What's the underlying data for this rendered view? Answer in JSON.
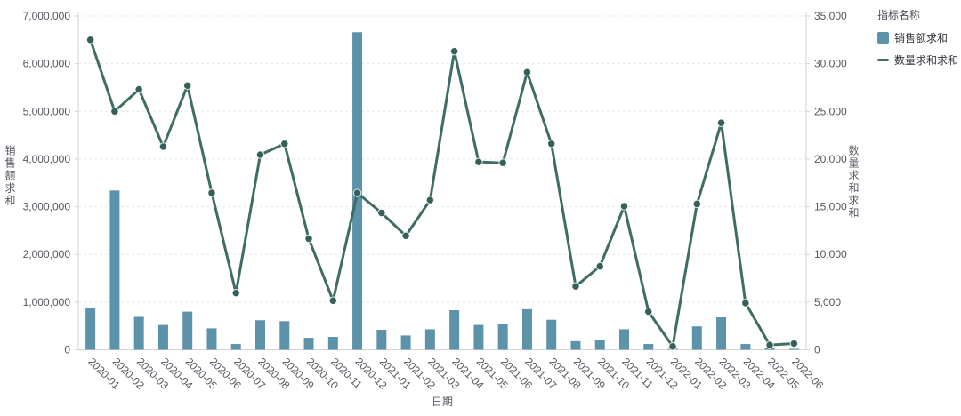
{
  "legend": {
    "title": "指标名称",
    "items": [
      {
        "label": "销售额求和",
        "type": "bar",
        "color": "#5d92ab"
      },
      {
        "label": "数量求和求和",
        "type": "line",
        "color": "#3f6d66"
      }
    ]
  },
  "chart_data": {
    "type": "bar+line",
    "title": "",
    "legend_title": "指标名称",
    "legend_position": "top-right",
    "grid": "horizontal dashed gridlines",
    "categories": [
      "2020-01",
      "2020-02",
      "2020-03",
      "2020-04",
      "2020-05",
      "2020-06",
      "2020-07",
      "2020-08",
      "2020-09",
      "2020-10",
      "2020-11",
      "2020-12",
      "2021-01",
      "2021-02",
      "2021-03",
      "2021-04",
      "2021-05",
      "2021-06",
      "2021-07",
      "2021-08",
      "2021-09",
      "2021-10",
      "2021-11",
      "2021-12",
      "2022-01",
      "2022-02",
      "2022-03",
      "2022-04",
      "2022-05",
      "2022-06"
    ],
    "series": [
      {
        "name": "销售额求和",
        "type": "bar",
        "axis": "left",
        "color": "#5d92ab",
        "values": [
          880000,
          3340000,
          690000,
          520000,
          800000,
          450000,
          120000,
          620000,
          600000,
          250000,
          270000,
          6660000,
          420000,
          300000,
          430000,
          830000,
          520000,
          550000,
          850000,
          630000,
          180000,
          210000,
          430000,
          120000,
          20000,
          490000,
          680000,
          120000,
          30000,
          20000
        ]
      },
      {
        "name": "数量求和求和",
        "type": "line",
        "axis": "right",
        "color": "#3f6d66",
        "point_color": "#35605a",
        "values": [
          32500,
          25000,
          27300,
          21300,
          27700,
          16450,
          5950,
          20450,
          21600,
          11650,
          5150,
          16450,
          14350,
          11950,
          15700,
          31300,
          19700,
          19600,
          29100,
          21600,
          6650,
          8750,
          15050,
          4000,
          350,
          15300,
          23800,
          4900,
          500,
          650
        ]
      }
    ],
    "left_axis": {
      "label": "销售额求和",
      "min": 0,
      "max": 7000000,
      "tick_step": 1000000
    },
    "right_axis": {
      "label": "数量求和求和",
      "min": 0,
      "max": 35000,
      "tick_step": 5000
    },
    "x_axis": {
      "label": "日期",
      "tick_rotation": 45
    },
    "colors": {
      "grid_line": "#e8e8e8",
      "axis_line": "#d4d4d4",
      "tick_text": "#55555f"
    }
  }
}
